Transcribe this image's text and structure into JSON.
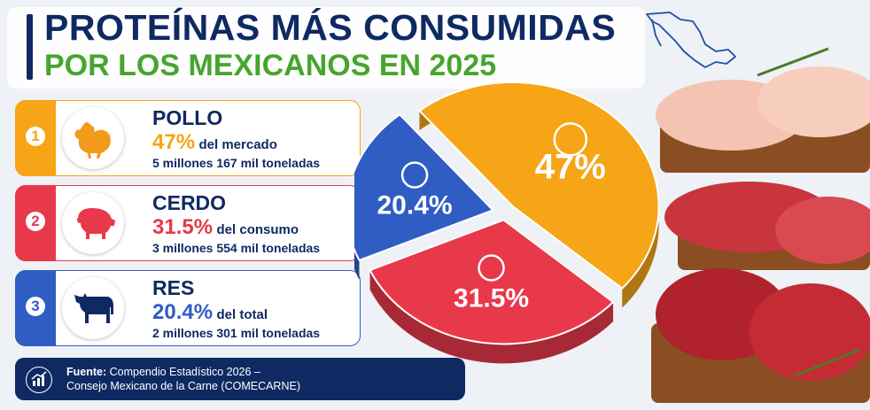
{
  "title_line1": "PROTEÍNAS MÁS CONSUMIDAS",
  "title_line2": "POR LOS MEXICANOS EN 2025",
  "cards": [
    {
      "rank": "1",
      "name": "POLLO",
      "pct": "47%",
      "pct_label": "del mercado",
      "tonnage": "5 millones 167 mil toneladas",
      "icon": "chicken-icon",
      "color": "#f5a516"
    },
    {
      "rank": "2",
      "name": "CERDO",
      "pct": "31.5%",
      "pct_label": "del consumo",
      "tonnage": "3 millones 554 mil toneladas",
      "icon": "pig-icon",
      "color": "#e8394a"
    },
    {
      "rank": "3",
      "name": "RES",
      "pct": "20.4%",
      "pct_label": "del total",
      "tonnage": "2 millones 301 mil toneladas",
      "icon": "cow-icon",
      "color": "#2f5dc4"
    }
  ],
  "source": {
    "label": "Fuente:",
    "line1": "Compendio Estadístico 2026 –",
    "line2": "Consejo Mexicano de la Carne (COMECARNE)",
    "icon": "chart-growth-icon"
  },
  "chart_data": {
    "type": "pie",
    "title": "",
    "slices": [
      {
        "label": "47%",
        "value": 47,
        "color": "#f5a516",
        "icon": "chicken-icon"
      },
      {
        "label": "31.5%",
        "value": 31.5,
        "color": "#e8394a",
        "icon": "pig-icon"
      },
      {
        "label": "20.4%",
        "value": 20.4,
        "color": "#2f5dc4",
        "icon": "cow-icon"
      }
    ]
  }
}
